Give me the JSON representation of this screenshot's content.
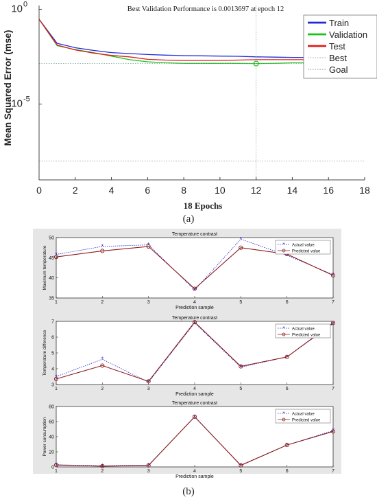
{
  "colors": {
    "train": "#1f2bd6",
    "validation": "#16c416",
    "test": "#e01b1b",
    "best": "#7fb3a0",
    "goal": "#8a8a8a",
    "actual": "#1b1bd6",
    "predicted": "#8b1a1a",
    "panel_bg": "#e6e6e6"
  },
  "captions": {
    "a": "(a)",
    "b": "(b)"
  },
  "chart_data": [
    {
      "type": "line",
      "title": "Best Validation Performance is 0.0013697 at epoch 12",
      "xlabel": "18 Epochs",
      "ylabel": "Mean Squared Error  (mse)",
      "yscale": "log",
      "xlim": [
        0,
        18
      ],
      "ylim_exp": [
        -9,
        0.2
      ],
      "xticks": [
        "0",
        "2",
        "4",
        "6",
        "8",
        "10",
        "12",
        "14",
        "16",
        "18"
      ],
      "yticks": [
        {
          "base": "10",
          "exp": "0",
          "value": 1
        },
        {
          "base": "10",
          "exp": "-5",
          "value": 1e-05
        }
      ],
      "legend": {
        "position": "top-right"
      },
      "series": [
        {
          "name": "Train",
          "key": "train",
          "x": [
            0,
            1,
            2,
            3,
            4,
            5,
            6,
            7,
            8,
            9,
            10,
            11,
            12,
            13,
            14,
            15,
            16,
            17,
            18
          ],
          "y": [
            0.3,
            0.016,
            0.0094,
            0.0068,
            0.0052,
            0.0046,
            0.0041,
            0.0038,
            0.0036,
            0.0035,
            0.0034,
            0.0033,
            0.0031,
            0.003,
            0.0029,
            0.0029,
            0.0028,
            0.0028,
            0.0027
          ]
        },
        {
          "name": "Validation",
          "key": "validation",
          "x": [
            0,
            1,
            2,
            3,
            4,
            5,
            6,
            7,
            8,
            9,
            10,
            11,
            12,
            13,
            14,
            15,
            16,
            17,
            18
          ],
          "y": [
            0.3,
            0.012,
            0.0075,
            0.0052,
            0.0034,
            0.0022,
            0.0017,
            0.0015,
            0.0014,
            0.0014,
            0.0014,
            0.0014,
            0.0013697,
            0.0014,
            0.0015,
            0.0015,
            0.0016,
            0.0016,
            0.0016
          ]
        },
        {
          "name": "Test",
          "key": "test",
          "x": [
            0,
            1,
            2,
            3,
            4,
            5,
            6,
            7,
            8,
            9,
            10,
            11,
            12,
            13,
            14,
            15,
            16,
            17,
            18
          ],
          "y": [
            0.3,
            0.013,
            0.0072,
            0.0049,
            0.0037,
            0.0031,
            0.0023,
            0.0021,
            0.002,
            0.002,
            0.002,
            0.0021,
            0.0022,
            0.0022,
            0.0022,
            0.0022,
            0.0022,
            0.0022,
            0.0022
          ]
        }
      ],
      "best": {
        "name": "Best",
        "epoch": 12,
        "value": 0.0013697
      },
      "goal": {
        "name": "Goal",
        "value": 1e-08
      }
    },
    {
      "type": "line",
      "title": "Temperature contrast",
      "xlabel": "Prediction sample",
      "ylabel": "Maximum temperature",
      "categories": [
        "1",
        "2",
        "3",
        "4",
        "5",
        "6",
        "7"
      ],
      "ylim": [
        35,
        50
      ],
      "yticks": [
        35,
        40,
        45,
        50
      ],
      "legend": {
        "position": "top-right"
      },
      "series": [
        {
          "name": "Actual value",
          "key": "actual",
          "values": [
            45.8,
            47.8,
            48.2,
            37.0,
            49.6,
            45.6,
            40.8
          ]
        },
        {
          "name": "Predicted value",
          "key": "predicted",
          "values": [
            45.2,
            46.7,
            47.8,
            37.3,
            47.5,
            45.9,
            40.6
          ]
        }
      ]
    },
    {
      "type": "line",
      "title": "Temperature contrast",
      "xlabel": "Prediction sample",
      "ylabel": "Temperature difference",
      "categories": [
        "1",
        "2",
        "3",
        "4",
        "5",
        "6",
        "7"
      ],
      "ylim": [
        3,
        7
      ],
      "yticks": [
        3,
        4,
        5,
        6,
        7
      ],
      "legend": {
        "position": "top-right"
      },
      "series": [
        {
          "name": "Actual value",
          "key": "actual",
          "values": [
            3.5,
            4.6,
            3.15,
            6.9,
            4.1,
            4.75,
            6.85
          ]
        },
        {
          "name": "Predicted value",
          "key": "predicted",
          "values": [
            3.35,
            4.2,
            3.2,
            6.95,
            4.15,
            4.75,
            6.9
          ]
        }
      ]
    },
    {
      "type": "line",
      "title": "Temperature contrast",
      "xlabel": "Prediction sample",
      "ylabel": "Power consumption",
      "categories": [
        "1",
        "2",
        "3",
        "4",
        "5",
        "6",
        "7"
      ],
      "ylim": [
        0,
        80
      ],
      "yticks": [
        0,
        20,
        40,
        60,
        80
      ],
      "legend": {
        "position": "top-right"
      },
      "series": [
        {
          "name": "Actual value",
          "key": "actual",
          "values": [
            3,
            1.5,
            2.5,
            66,
            2.5,
            29,
            48
          ]
        },
        {
          "name": "Predicted value",
          "key": "predicted",
          "values": [
            2.5,
            1.0,
            2.0,
            66.5,
            2.0,
            29,
            47
          ]
        }
      ]
    }
  ]
}
